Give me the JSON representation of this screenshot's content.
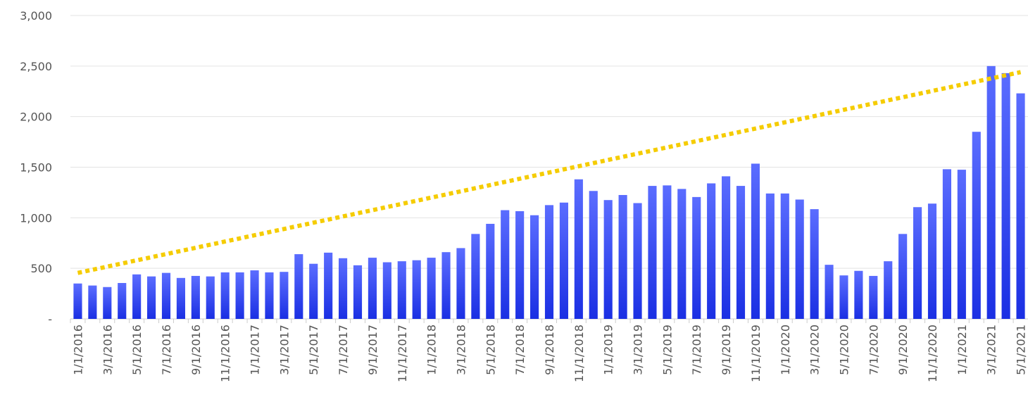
{
  "chart_data": {
    "type": "bar",
    "categories": [
      "1/1/2016",
      null,
      "3/1/2016",
      null,
      "5/1/2016",
      null,
      "7/1/2016",
      null,
      "9/1/2016",
      null,
      "11/1/2016",
      null,
      "1/1/2017",
      null,
      "3/1/2017",
      null,
      "5/1/2017",
      null,
      "7/1/2017",
      null,
      "9/1/2017",
      null,
      "11/1/2017",
      null,
      "1/1/2018",
      null,
      "3/1/2018",
      null,
      "5/1/2018",
      null,
      "7/1/2018",
      null,
      "9/1/2018",
      null,
      "11/1/2018",
      null,
      "1/1/2019",
      null,
      "3/1/2019",
      null,
      "5/1/2019",
      null,
      "7/1/2019",
      null,
      "9/1/2019",
      null,
      "11/1/2019",
      null,
      "1/1/2020",
      null,
      "3/1/2020",
      null,
      "5/1/2020",
      null,
      "7/1/2020",
      null,
      "9/1/2020",
      null,
      "11/1/2020",
      null,
      "1/1/2021",
      null,
      "3/1/2021",
      null,
      "5/1/2021"
    ],
    "values": [
      350,
      330,
      315,
      355,
      440,
      420,
      455,
      405,
      425,
      420,
      460,
      460,
      480,
      460,
      465,
      640,
      545,
      655,
      600,
      530,
      605,
      560,
      570,
      580,
      605,
      660,
      700,
      840,
      940,
      1075,
      1065,
      1025,
      1125,
      1150,
      1380,
      1265,
      1175,
      1225,
      1145,
      1315,
      1320,
      1285,
      1205,
      1340,
      1410,
      1315,
      1535,
      1240,
      1240,
      1180,
      1085,
      535,
      430,
      475,
      425,
      570,
      840,
      1105,
      1140,
      1480,
      1475,
      1850,
      2500,
      2430,
      2230
    ],
    "gradient": [
      "#5b6dff",
      "#1a2fe3"
    ],
    "trendline": {
      "start": 455,
      "end": 2440,
      "color": "#f5cc00"
    },
    "ylim": [
      0,
      3000
    ],
    "yticks": [
      {
        "value": 0,
        "label": "-"
      },
      500,
      {
        "value": 1000,
        "label": "1,000"
      },
      {
        "value": 1500,
        "label": "1,500"
      },
      {
        "value": 2000,
        "label": "2,000"
      },
      {
        "value": 2500,
        "label": "2,500"
      },
      {
        "value": 3000,
        "label": "3,000"
      }
    ],
    "grid": true
  }
}
